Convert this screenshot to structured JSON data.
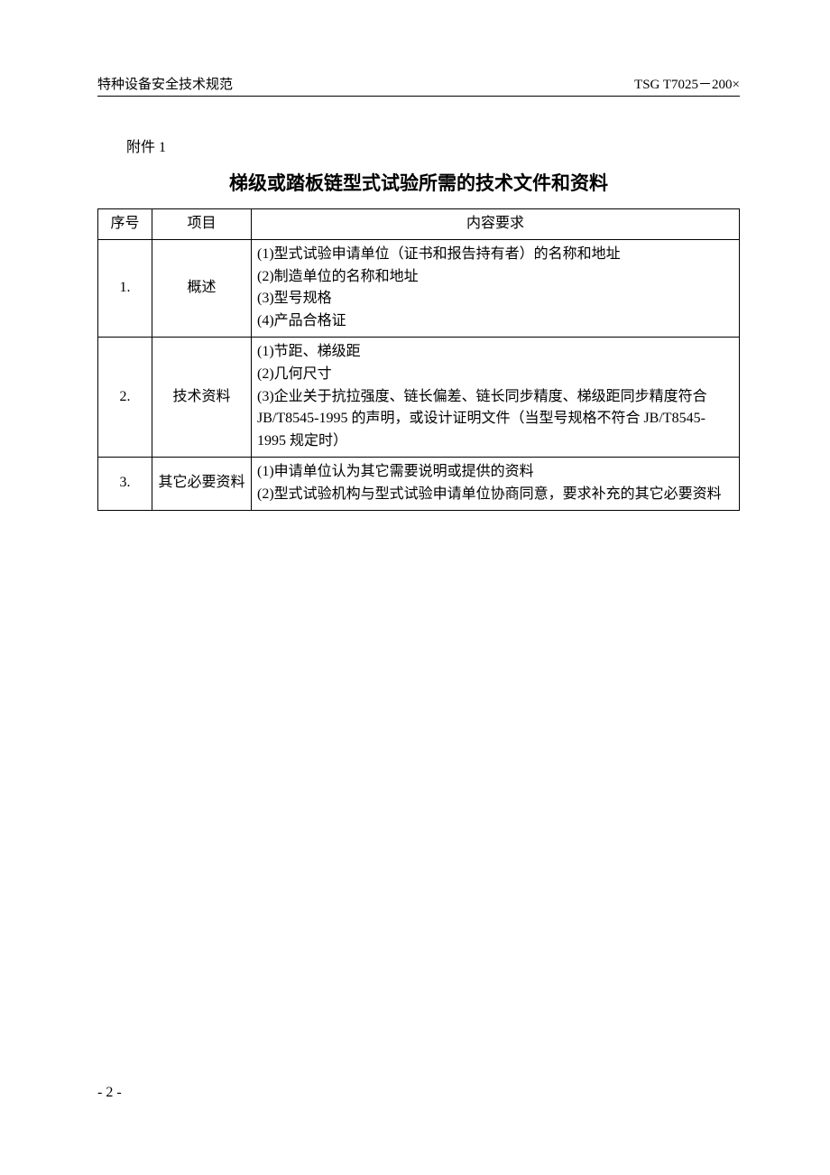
{
  "header": {
    "left": "特种设备安全技术规范",
    "right": "TSG T7025－200×"
  },
  "attachment_label": "附件 1",
  "title": "梯级或踏板链型式试验所需的技术文件和资料",
  "table": {
    "headers": {
      "seq": "序号",
      "item": "项目",
      "content": "内容要求"
    },
    "rows": [
      {
        "seq": "1.",
        "item": "概述",
        "lines": [
          "(1)型式试验申请单位（证书和报告持有者）的名称和地址",
          "(2)制造单位的名称和地址",
          "(3)型号规格",
          "(4)产品合格证"
        ]
      },
      {
        "seq": "2.",
        "item": "技术资料",
        "lines": [
          "(1)节距、梯级距",
          "(2)几何尺寸",
          "(3)企业关于抗拉强度、链长偏差、链长同步精度、梯级距同步精度符合 JB/T8545-1995 的声明，或设计证明文件（当型号规格不符合 JB/T8545-1995 规定时）"
        ]
      },
      {
        "seq": "3.",
        "item": "其它必要资料",
        "lines": [
          "(1)申请单位认为其它需要说明或提供的资料",
          "(2)型式试验机构与型式试验申请单位协商同意，要求补充的其它必要资料"
        ]
      }
    ]
  },
  "page_number": "- 2 -",
  "colors": {
    "text": "#000000",
    "background": "#ffffff",
    "border": "#000000"
  },
  "fonts": {
    "body": "SimSun",
    "title": "SimHei",
    "body_size": 16,
    "title_size": 21,
    "header_size": 15
  }
}
